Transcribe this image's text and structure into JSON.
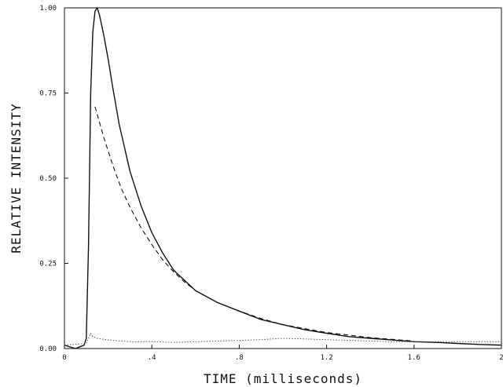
{
  "chart_data": {
    "type": "line",
    "title": "",
    "xlabel": "TIME (milliseconds)",
    "ylabel": "RELATIVE INTENSITY",
    "xlim": [
      0,
      2.0
    ],
    "ylim": [
      0,
      1.0
    ],
    "grid": false,
    "x_ticks": [
      {
        "value": 0,
        "label": "0"
      },
      {
        "value": 0.4,
        "label": ".4"
      },
      {
        "value": 0.8,
        "label": ".8"
      },
      {
        "value": 1.2,
        "label": "1.2"
      },
      {
        "value": 1.6,
        "label": "1.6"
      },
      {
        "value": 2.0,
        "label": "2"
      }
    ],
    "y_ticks": [
      {
        "value": 0,
        "label": "0.00"
      },
      {
        "value": 0.25,
        "label": "0.25"
      },
      {
        "value": 0.5,
        "label": "0.50"
      },
      {
        "value": 0.75,
        "label": "0.75"
      },
      {
        "value": 1.0,
        "label": "1.00"
      }
    ],
    "series": [
      {
        "style": "solid",
        "color": "#111111",
        "x": [
          0,
          0.05,
          0.09,
          0.1,
          0.11,
          0.12,
          0.13,
          0.14,
          0.15,
          0.16,
          0.18,
          0.2,
          0.22,
          0.25,
          0.3,
          0.35,
          0.4,
          0.45,
          0.5,
          0.55,
          0.6,
          0.7,
          0.8,
          0.9,
          1.0,
          1.1,
          1.2,
          1.3,
          1.4,
          1.5,
          1.6,
          1.7,
          1.8,
          1.9,
          2.0
        ],
        "y": [
          0.01,
          0.0,
          0.01,
          0.03,
          0.3,
          0.75,
          0.93,
          0.99,
          1.0,
          0.98,
          0.92,
          0.85,
          0.77,
          0.66,
          0.52,
          0.42,
          0.34,
          0.28,
          0.23,
          0.2,
          0.17,
          0.135,
          0.11,
          0.085,
          0.07,
          0.055,
          0.045,
          0.035,
          0.03,
          0.025,
          0.02,
          0.018,
          0.015,
          0.012,
          0.01
        ]
      },
      {
        "style": "dashed",
        "color": "#111111",
        "x": [
          0.14,
          0.18,
          0.22,
          0.26,
          0.3,
          0.35,
          0.4,
          0.45,
          0.5,
          0.55,
          0.6,
          0.7,
          0.8,
          0.9,
          1.0,
          1.2,
          1.4,
          1.6
        ],
        "y": [
          0.71,
          0.62,
          0.54,
          0.47,
          0.415,
          0.355,
          0.305,
          0.26,
          0.225,
          0.195,
          0.17,
          0.135,
          0.11,
          0.088,
          0.07,
          0.047,
          0.032,
          0.022
        ]
      },
      {
        "style": "dotted",
        "color": "#555555",
        "x": [
          0,
          0.1,
          0.12,
          0.13,
          0.15,
          0.2,
          0.3,
          0.4,
          0.5,
          0.6,
          0.7,
          0.8,
          0.9,
          1.0,
          1.1,
          1.2,
          1.3,
          1.4,
          1.5,
          1.6,
          1.7,
          1.8,
          1.9,
          2.0
        ],
        "y": [
          0.01,
          0.015,
          0.045,
          0.035,
          0.03,
          0.025,
          0.02,
          0.02,
          0.018,
          0.02,
          0.022,
          0.024,
          0.026,
          0.03,
          0.028,
          0.026,
          0.024,
          0.022,
          0.02,
          0.02,
          0.02,
          0.02,
          0.02,
          0.02
        ]
      }
    ]
  }
}
